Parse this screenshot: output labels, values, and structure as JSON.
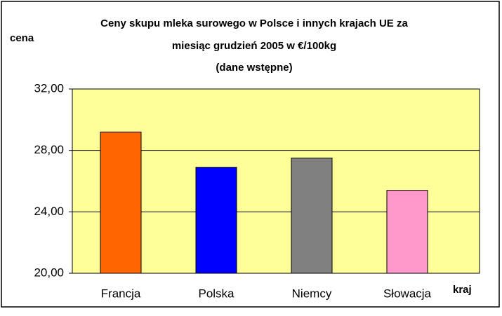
{
  "chart_data": {
    "type": "bar",
    "title": [
      "Ceny skupu mleka surowego w Polsce i innych krajach UE za",
      "miesiąc grudzień 2005 w €/100kg",
      "(dane wstępne)"
    ],
    "y_label": "cena",
    "x_label": "kraj",
    "categories": [
      "Francja",
      "Polska",
      "Niemcy",
      "Słowacja"
    ],
    "values": [
      29.2,
      26.9,
      27.5,
      25.4
    ],
    "colors": [
      "#ff6600",
      "#0000ff",
      "#808080",
      "#ff99cc"
    ],
    "ylim": [
      20,
      32
    ],
    "yticks": [
      {
        "value": 20,
        "label": "20,00"
      },
      {
        "value": 24,
        "label": "24,00"
      },
      {
        "value": 28,
        "label": "28,00"
      },
      {
        "value": 32,
        "label": "32,00"
      }
    ],
    "grid": true
  }
}
